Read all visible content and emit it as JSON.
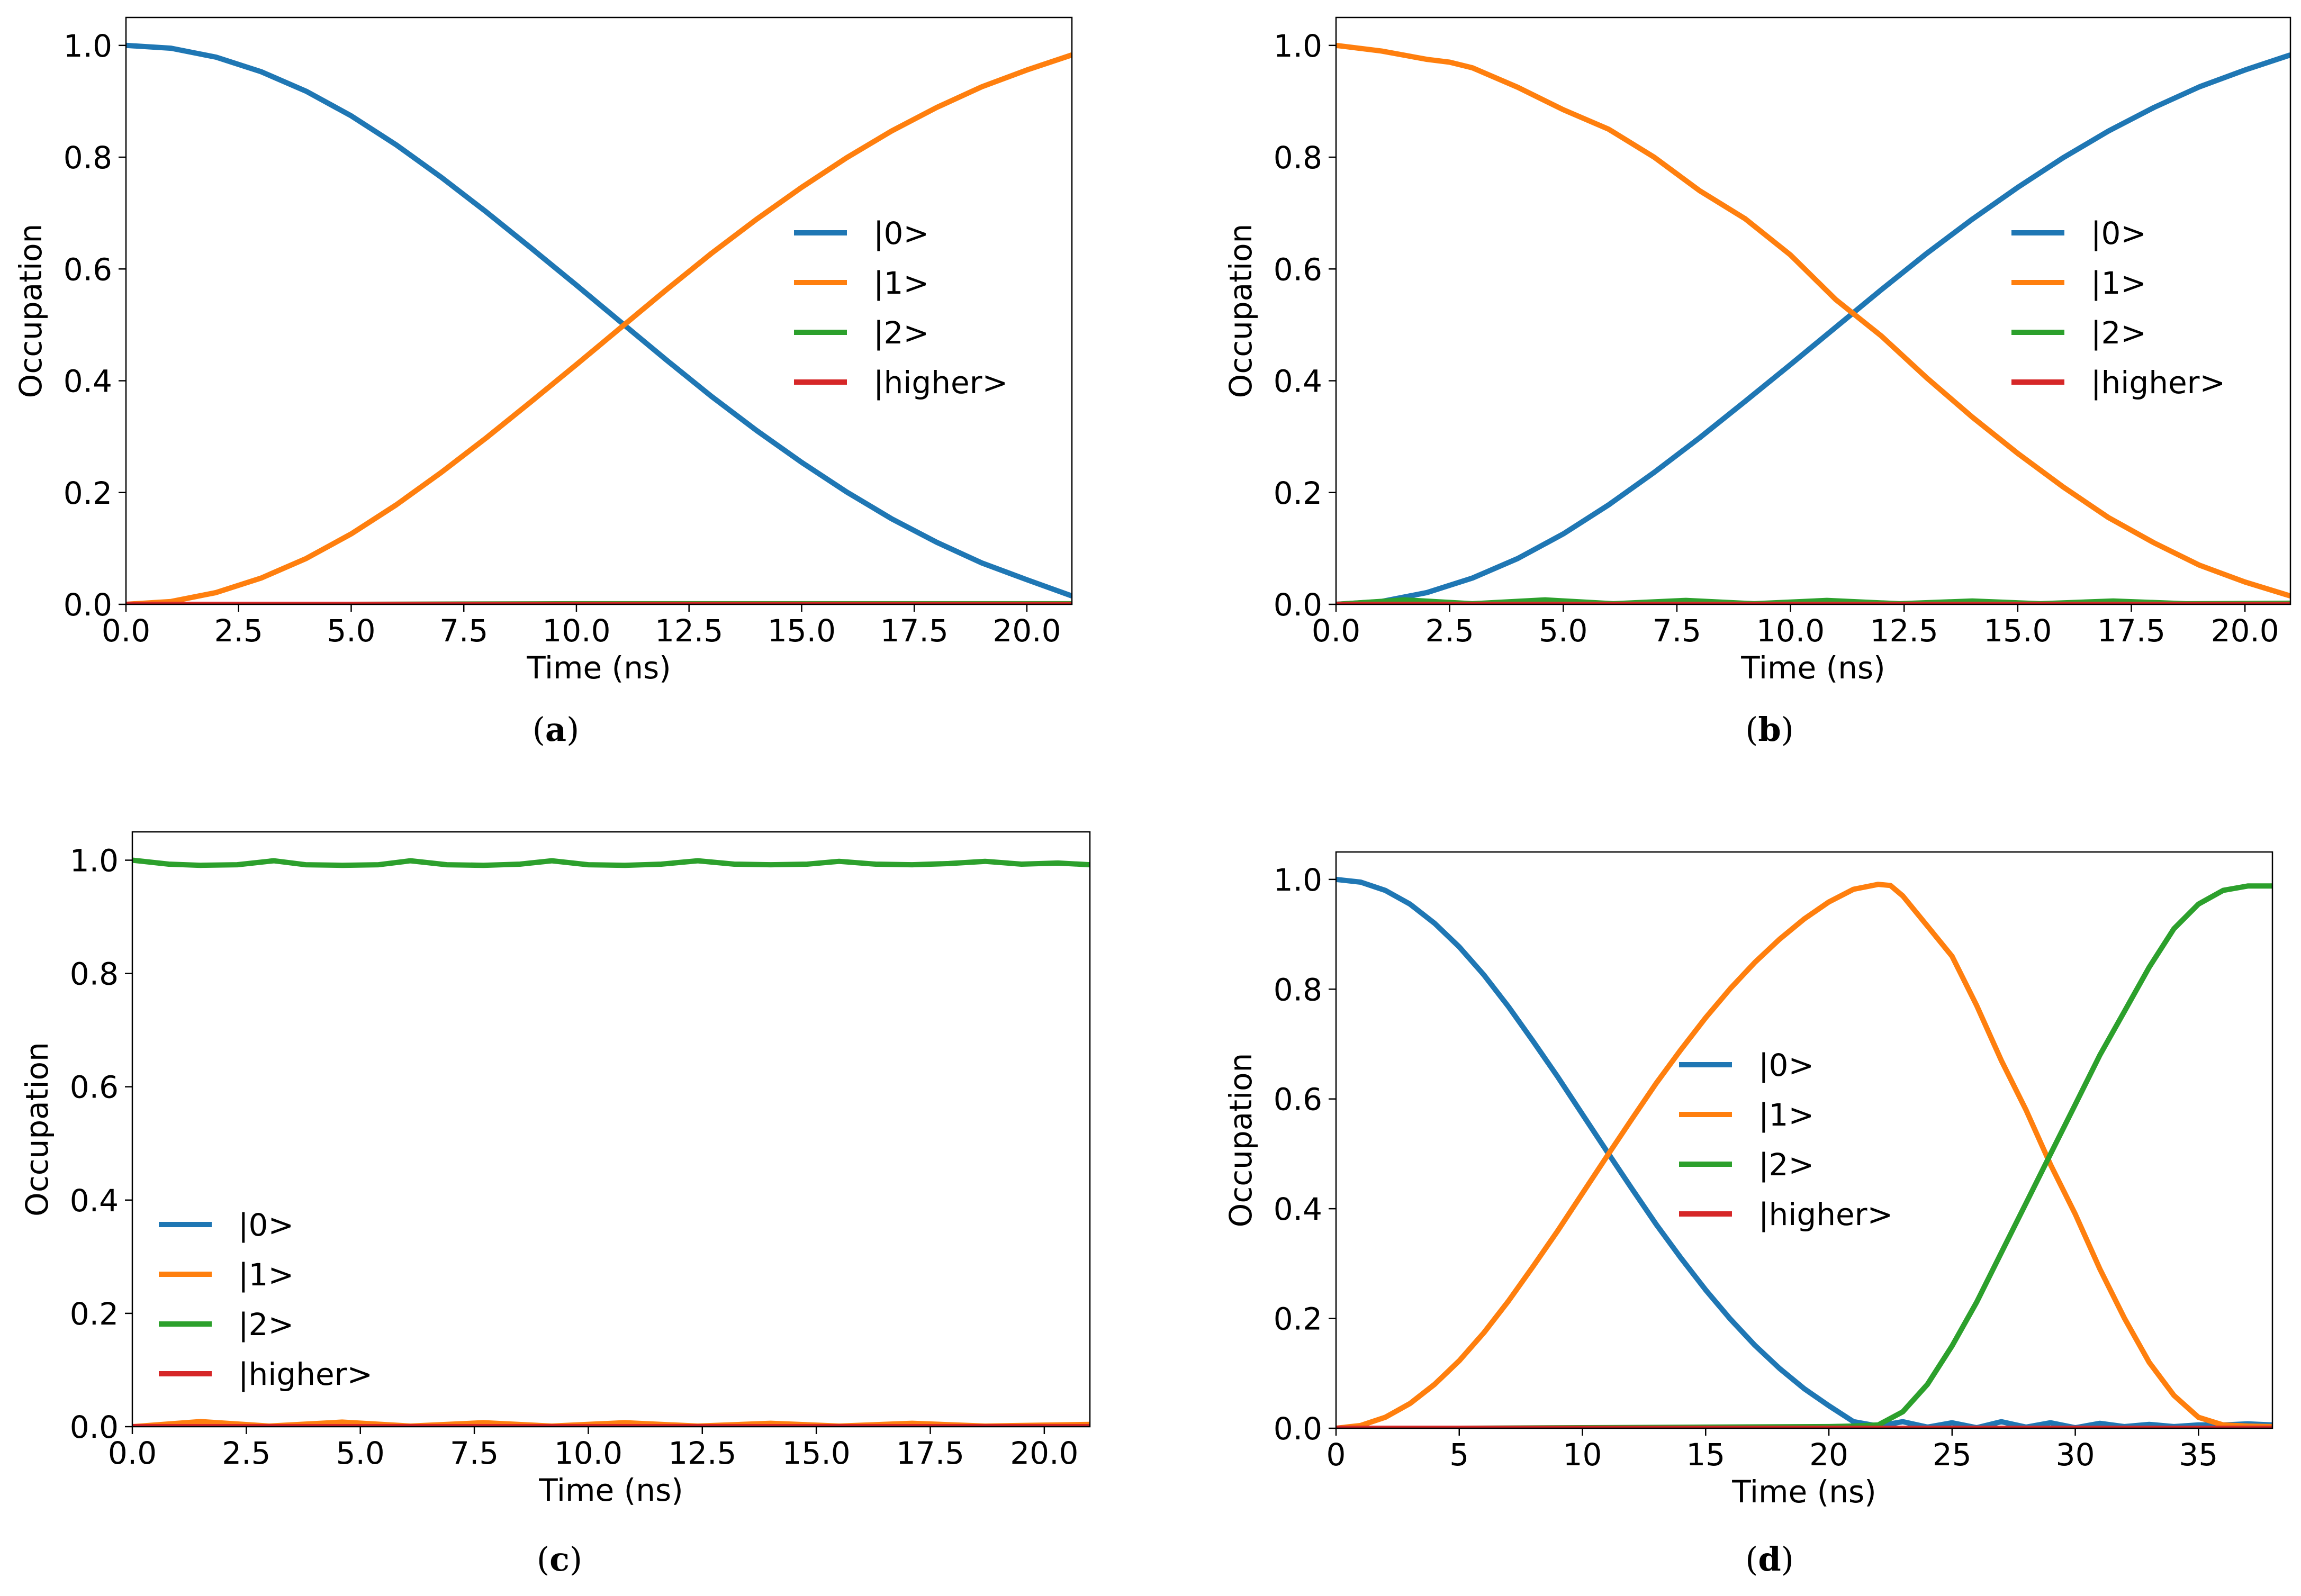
{
  "colors": {
    "state0": "#1f77b4",
    "state1": "#ff7f0e",
    "state2": "#2ca02c",
    "higher": "#d62728"
  },
  "chart_data": [
    {
      "panel": "(a)",
      "caption": {
        "paren_open": "(",
        "letter": "a",
        "paren_close": ")"
      },
      "type": "line",
      "xlabel": "Time (ns)",
      "ylabel": "Occupation",
      "xlim": [
        0,
        21.0
      ],
      "ylim": [
        0,
        1.05
      ],
      "xticks": [
        0,
        2.5,
        5,
        7.5,
        10,
        12.5,
        15,
        17.5,
        20
      ],
      "xtick_labels": [
        "0.0",
        "2.5",
        "5.0",
        "7.5",
        "10.0",
        "12.5",
        "15.0",
        "17.5",
        "20.0"
      ],
      "yticks": [
        0,
        0.2,
        0.4,
        0.6,
        0.8,
        1.0
      ],
      "ytick_labels": [
        "0.0",
        "0.2",
        "0.4",
        "0.6",
        "0.8",
        "1.0"
      ],
      "legend_position": "center-right",
      "series": [
        {
          "name": "|0>",
          "color_key": "state0",
          "x": [
            0,
            1,
            2,
            3,
            4,
            5,
            6,
            7,
            8,
            9,
            10,
            11,
            12,
            13,
            14,
            15,
            16,
            17,
            18,
            19,
            20,
            21
          ],
          "y": [
            1.0,
            0.995,
            0.979,
            0.953,
            0.918,
            0.874,
            0.822,
            0.764,
            0.702,
            0.637,
            0.571,
            0.504,
            0.437,
            0.372,
            0.311,
            0.254,
            0.201,
            0.153,
            0.111,
            0.074,
            0.044,
            0.015
          ]
        },
        {
          "name": "|1>",
          "color_key": "state1",
          "x": [
            0,
            1,
            2,
            3,
            4,
            5,
            6,
            7,
            8,
            9,
            10,
            11,
            12,
            13,
            14,
            15,
            16,
            17,
            18,
            19,
            20,
            21
          ],
          "y": [
            0.0,
            0.005,
            0.021,
            0.047,
            0.082,
            0.126,
            0.178,
            0.236,
            0.298,
            0.363,
            0.429,
            0.496,
            0.563,
            0.628,
            0.689,
            0.746,
            0.799,
            0.847,
            0.889,
            0.926,
            0.956,
            0.983
          ]
        },
        {
          "name": "|2>",
          "color_key": "state2",
          "x": [
            0,
            5,
            10,
            15,
            21
          ],
          "y": [
            0.0,
            0.0,
            0.001,
            0.001,
            0.001
          ]
        },
        {
          "name": "|higher>",
          "color_key": "higher",
          "x": [
            0,
            5,
            10,
            15,
            21
          ],
          "y": [
            0.0,
            0.0,
            0.0,
            0.0,
            0.0
          ]
        }
      ]
    },
    {
      "panel": "(b)",
      "caption": {
        "paren_open": "(",
        "letter": "b",
        "paren_close": ")"
      },
      "type": "line",
      "xlabel": "Time (ns)",
      "ylabel": "Occupation",
      "xlim": [
        0,
        21.0
      ],
      "ylim": [
        0,
        1.05
      ],
      "xticks": [
        0,
        2.5,
        5,
        7.5,
        10,
        12.5,
        15,
        17.5,
        20
      ],
      "xtick_labels": [
        "0.0",
        "2.5",
        "5.0",
        "7.5",
        "10.0",
        "12.5",
        "15.0",
        "17.5",
        "20.0"
      ],
      "yticks": [
        0,
        0.2,
        0.4,
        0.6,
        0.8,
        1.0
      ],
      "ytick_labels": [
        "0.0",
        "0.2",
        "0.4",
        "0.6",
        "0.8",
        "1.0"
      ],
      "legend_position": "center-right",
      "series": [
        {
          "name": "|0>",
          "color_key": "state0",
          "x": [
            0,
            1,
            2,
            3,
            4,
            5,
            6,
            7,
            8,
            9,
            10,
            11,
            12,
            13,
            14,
            15,
            16,
            17,
            18,
            19,
            20,
            21
          ],
          "y": [
            0.0,
            0.005,
            0.021,
            0.047,
            0.082,
            0.126,
            0.178,
            0.236,
            0.298,
            0.363,
            0.429,
            0.496,
            0.563,
            0.628,
            0.689,
            0.746,
            0.799,
            0.847,
            0.889,
            0.926,
            0.956,
            0.983
          ]
        },
        {
          "name": "|1>",
          "color_key": "state1",
          "x": [
            0,
            1,
            2,
            2.5,
            3,
            4,
            5,
            6,
            7,
            8,
            9,
            10,
            11,
            12,
            13,
            14,
            15,
            16,
            17,
            18,
            19,
            20,
            21
          ],
          "y": [
            1.0,
            0.99,
            0.975,
            0.97,
            0.96,
            0.925,
            0.885,
            0.85,
            0.8,
            0.74,
            0.69,
            0.625,
            0.545,
            0.48,
            0.405,
            0.335,
            0.27,
            0.21,
            0.155,
            0.11,
            0.07,
            0.04,
            0.015
          ]
        },
        {
          "name": "|2>",
          "color_key": "state2",
          "x": [
            0,
            1.5,
            3,
            4.6,
            6.1,
            7.7,
            9.2,
            10.8,
            12.4,
            14,
            15.5,
            17.1,
            18.7,
            21
          ],
          "y": [
            0.0,
            0.008,
            0.001,
            0.008,
            0.001,
            0.007,
            0.001,
            0.007,
            0.001,
            0.006,
            0.001,
            0.006,
            0.001,
            0.002
          ]
        },
        {
          "name": "|higher>",
          "color_key": "higher",
          "x": [
            0,
            5,
            10,
            15,
            21
          ],
          "y": [
            0.0,
            0.0,
            0.0,
            0.0,
            0.0
          ]
        }
      ]
    },
    {
      "panel": "(c)",
      "caption": {
        "paren_open": "(",
        "letter": "c",
        "paren_close": ")"
      },
      "type": "line",
      "xlabel": "Time (ns)",
      "ylabel": "Occupation",
      "xlim": [
        0,
        21.0
      ],
      "ylim": [
        0,
        1.05
      ],
      "xticks": [
        0,
        2.5,
        5,
        7.5,
        10,
        12.5,
        15,
        17.5,
        20
      ],
      "xtick_labels": [
        "0.0",
        "2.5",
        "5.0",
        "7.5",
        "10.0",
        "12.5",
        "15.0",
        "17.5",
        "20.0"
      ],
      "yticks": [
        0,
        0.2,
        0.4,
        0.6,
        0.8,
        1.0
      ],
      "ytick_labels": [
        "0.0",
        "0.2",
        "0.4",
        "0.6",
        "0.8",
        "1.0"
      ],
      "legend_position": "lower-left",
      "series": [
        {
          "name": "|0>",
          "color_key": "state0",
          "x": [
            0,
            5,
            10,
            15,
            21
          ],
          "y": [
            0.0,
            0.0,
            0.0,
            0.0,
            0.0
          ]
        },
        {
          "name": "|1>",
          "color_key": "state1",
          "x": [
            0,
            1.5,
            3,
            4.6,
            6.1,
            7.7,
            9.2,
            10.8,
            12.4,
            14,
            15.5,
            17.1,
            18.7,
            21
          ],
          "y": [
            0.0,
            0.009,
            0.001,
            0.008,
            0.001,
            0.007,
            0.001,
            0.007,
            0.001,
            0.006,
            0.001,
            0.006,
            0.001,
            0.004
          ]
        },
        {
          "name": "|2>",
          "color_key": "state2",
          "x": [
            0,
            0.8,
            1.5,
            2.3,
            3.1,
            3.8,
            4.6,
            5.4,
            6.1,
            6.9,
            7.7,
            8.5,
            9.2,
            10,
            10.8,
            11.6,
            12.4,
            13.2,
            14,
            14.8,
            15.5,
            16.3,
            17.1,
            17.9,
            18.7,
            19.5,
            20.3,
            21
          ],
          "y": [
            1.0,
            0.993,
            0.991,
            0.992,
            0.999,
            0.992,
            0.991,
            0.992,
            0.999,
            0.992,
            0.991,
            0.993,
            0.999,
            0.992,
            0.991,
            0.993,
            0.999,
            0.993,
            0.992,
            0.993,
            0.998,
            0.993,
            0.992,
            0.994,
            0.998,
            0.993,
            0.995,
            0.992
          ]
        },
        {
          "name": "|higher>",
          "color_key": "higher",
          "x": [
            0,
            5,
            10,
            15,
            21
          ],
          "y": [
            0.0,
            0.0,
            0.0,
            0.0,
            0.0
          ]
        }
      ]
    },
    {
      "panel": "(d)",
      "caption": {
        "paren_open": "(",
        "letter": "d",
        "paren_close": ")"
      },
      "type": "line",
      "xlabel": "Time (ns)",
      "ylabel": "Occupation",
      "xlim": [
        0,
        38.0
      ],
      "ylim": [
        0,
        1.05
      ],
      "xticks": [
        0,
        5,
        10,
        15,
        20,
        25,
        30,
        35
      ],
      "xtick_labels": [
        "0",
        "5",
        "10",
        "15",
        "20",
        "25",
        "30",
        "35"
      ],
      "yticks": [
        0,
        0.2,
        0.4,
        0.6,
        0.8,
        1.0
      ],
      "ytick_labels": [
        "0.0",
        "0.2",
        "0.4",
        "0.6",
        "0.8",
        "1.0"
      ],
      "legend_position": "center",
      "series": [
        {
          "name": "|0>",
          "color_key": "state0",
          "x": [
            0,
            1,
            2,
            3,
            4,
            5,
            6,
            7,
            8,
            9,
            10,
            11,
            12,
            13,
            14,
            15,
            16,
            17,
            18,
            19,
            20,
            21,
            22,
            23,
            24,
            25,
            26,
            27,
            28,
            29,
            30,
            31,
            32,
            33,
            34,
            35,
            36,
            37,
            38
          ],
          "y": [
            1.0,
            0.995,
            0.98,
            0.955,
            0.92,
            0.877,
            0.826,
            0.768,
            0.705,
            0.64,
            0.572,
            0.504,
            0.437,
            0.371,
            0.31,
            0.252,
            0.199,
            0.151,
            0.109,
            0.072,
            0.041,
            0.012,
            0.004,
            0.012,
            0.002,
            0.01,
            0.001,
            0.012,
            0.002,
            0.01,
            0.001,
            0.009,
            0.003,
            0.007,
            0.003,
            0.006,
            0.006,
            0.008,
            0.006
          ]
        },
        {
          "name": "|1>",
          "color_key": "state1",
          "x": [
            0,
            1,
            2,
            3,
            4,
            5,
            6,
            7,
            8,
            9,
            10,
            11,
            12,
            13,
            14,
            15,
            16,
            17,
            18,
            19,
            20,
            21,
            22,
            22.5,
            23,
            24,
            25,
            26,
            27,
            28,
            29,
            30,
            31,
            32,
            33,
            34,
            35,
            36,
            37,
            38
          ],
          "y": [
            0.0,
            0.005,
            0.02,
            0.045,
            0.08,
            0.123,
            0.174,
            0.232,
            0.295,
            0.36,
            0.428,
            0.496,
            0.563,
            0.629,
            0.69,
            0.748,
            0.801,
            0.849,
            0.891,
            0.928,
            0.959,
            0.982,
            0.991,
            0.989,
            0.97,
            0.915,
            0.86,
            0.77,
            0.67,
            0.58,
            0.48,
            0.39,
            0.29,
            0.2,
            0.12,
            0.06,
            0.02,
            0.006,
            0.004,
            0.003
          ]
        },
        {
          "name": "|2>",
          "color_key": "state2",
          "x": [
            0,
            5,
            10,
            15,
            20,
            21,
            22,
            23,
            24,
            25,
            26,
            27,
            28,
            29,
            30,
            31,
            32,
            33,
            34,
            35,
            36,
            37,
            38
          ],
          "y": [
            0.0,
            0.0,
            0.001,
            0.002,
            0.003,
            0.004,
            0.006,
            0.03,
            0.08,
            0.15,
            0.23,
            0.32,
            0.41,
            0.5,
            0.59,
            0.68,
            0.76,
            0.84,
            0.91,
            0.955,
            0.98,
            0.988,
            0.988
          ]
        },
        {
          "name": "|higher>",
          "color_key": "higher",
          "x": [
            0,
            10,
            20,
            30,
            38
          ],
          "y": [
            0.0,
            0.0,
            0.0,
            0.0,
            0.0
          ]
        }
      ]
    }
  ]
}
